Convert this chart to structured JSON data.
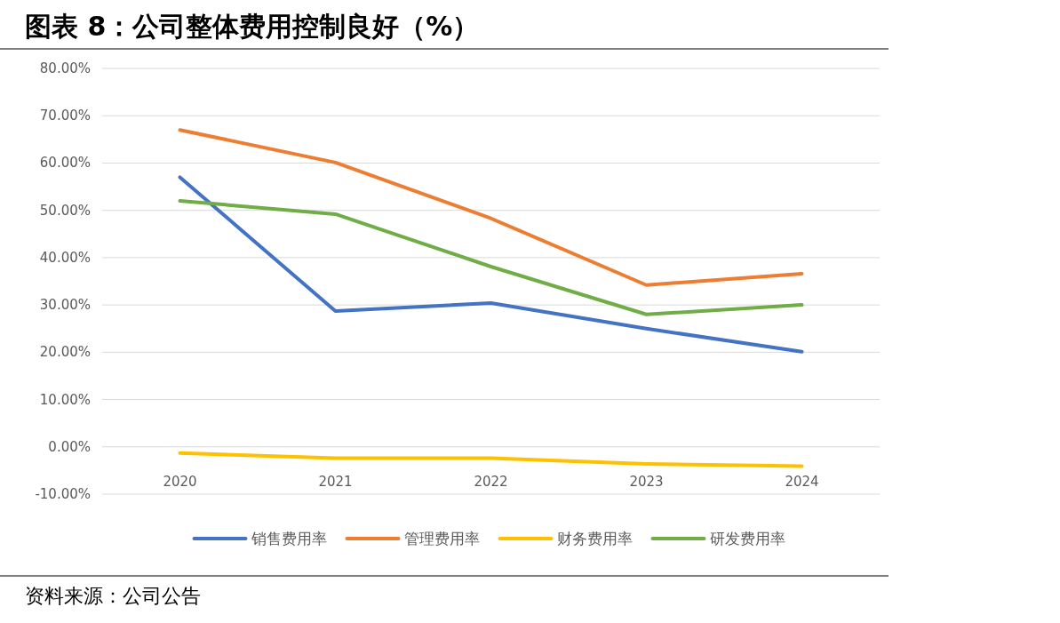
{
  "chart_data": {
    "type": "line",
    "title": "图表 8：公司整体费用控制良好（%）",
    "categories": [
      "2020",
      "2021",
      "2022",
      "2023",
      "2024"
    ],
    "series": [
      {
        "name": "销售费用率",
        "color": "#4472c4",
        "values": [
          57,
          28.7,
          30.4,
          25,
          20.1
        ]
      },
      {
        "name": "管理费用率",
        "color": "#ed7d31",
        "values": [
          67,
          60.1,
          48.3,
          34.2,
          36.6
        ]
      },
      {
        "name": "财务费用率",
        "color": "#ffc000",
        "values": [
          -1.3,
          -2.4,
          -2.4,
          -3.6,
          -4.1
        ]
      },
      {
        "name": "研发费用率",
        "color": "#70ad47",
        "values": [
          52,
          49.2,
          38.1,
          28,
          30
        ]
      }
    ],
    "ylim": [
      -10,
      80
    ],
    "yticks": [
      {
        "value": -10,
        "label": "-10.00%"
      },
      {
        "value": 0,
        "label": "0.00%"
      },
      {
        "value": 10,
        "label": "10.00%"
      },
      {
        "value": 20,
        "label": "20.00%"
      },
      {
        "value": 30,
        "label": "30.00%"
      },
      {
        "value": 40,
        "label": "40.00%"
      },
      {
        "value": 50,
        "label": "50.00%"
      },
      {
        "value": 60,
        "label": "60.00%"
      },
      {
        "value": 70,
        "label": "70.00%"
      },
      {
        "value": 80,
        "label": "80.00%"
      }
    ],
    "grid": "y",
    "legend": "bottom",
    "annotations": [
      "资料来源：公司公告"
    ]
  }
}
